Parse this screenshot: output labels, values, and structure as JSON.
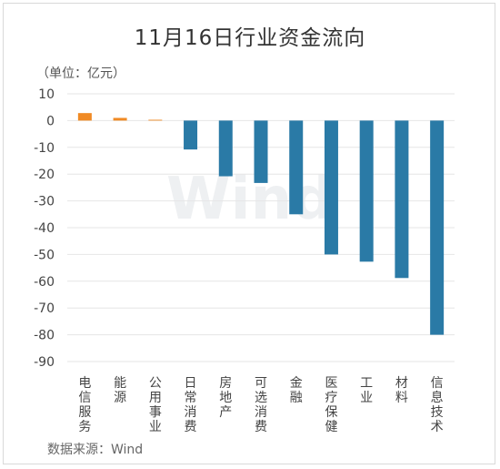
{
  "chart_data": {
    "type": "bar",
    "title": "11月16日行业资金流向",
    "unit_label": "（单位：亿元）",
    "source": "数据来源：Wind",
    "watermark": "Wind",
    "categories": [
      "电信服务",
      "能源",
      "公用事业",
      "日常消费",
      "房地产",
      "可选消费",
      "金融",
      "医疗保健",
      "工业",
      "材料",
      "信息技术"
    ],
    "values": [
      2.8,
      1.0,
      0.3,
      -10.8,
      -20.8,
      -23.3,
      -35.0,
      -50.0,
      -52.7,
      -58.8,
      -80.0
    ],
    "ylim": [
      -90,
      10
    ],
    "yticks": [
      10,
      0,
      -10,
      -20,
      -30,
      -40,
      -50,
      -60,
      -70,
      -80,
      -90
    ],
    "colors": {
      "positive": "#f08a24",
      "negative": "#2a7aa6"
    },
    "grid": true
  }
}
